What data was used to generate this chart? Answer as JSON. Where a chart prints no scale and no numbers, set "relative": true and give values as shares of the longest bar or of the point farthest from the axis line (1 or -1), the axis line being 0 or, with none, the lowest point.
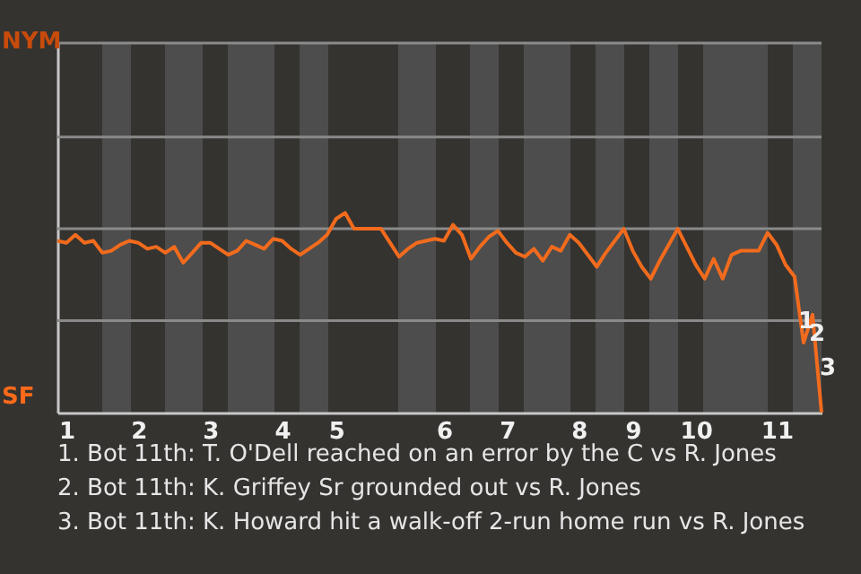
{
  "chart_data": {
    "type": "line",
    "relative": true,
    "categories": [
      null,
      "1",
      null,
      null,
      null,
      null,
      null,
      null,
      null,
      "2",
      null,
      null,
      null,
      null,
      null,
      null,
      null,
      "3",
      null,
      null,
      null,
      null,
      null,
      null,
      null,
      "4",
      null,
      null,
      null,
      null,
      null,
      "5",
      null,
      null,
      null,
      null,
      null,
      null,
      null,
      null,
      null,
      null,
      null,
      "6",
      null,
      null,
      null,
      null,
      null,
      null,
      "7",
      null,
      null,
      null,
      null,
      null,
      null,
      null,
      "8",
      null,
      null,
      null,
      null,
      null,
      "9",
      null,
      null,
      null,
      null,
      null,
      null,
      "10",
      null,
      null,
      null,
      null,
      null,
      null,
      null,
      null,
      "11",
      null,
      null,
      null,
      null,
      null
    ],
    "series": [
      {
        "color": "#f26b1d",
        "values": [
          0.86,
          0.85,
          0.89,
          0.85,
          0.86,
          0.8,
          0.81,
          0.84,
          0.86,
          0.85,
          0.82,
          0.83,
          0.8,
          0.83,
          0.75,
          0.8,
          0.85,
          0.85,
          0.82,
          0.79,
          0.81,
          0.86,
          0.84,
          0.82,
          0.87,
          0.86,
          0.82,
          0.79,
          0.82,
          0.85,
          0.89,
          0.97,
          1,
          0.92,
          0.92,
          0.92,
          0.92,
          0.85,
          0.78,
          0.82,
          0.85,
          0.86,
          0.87,
          0.86,
          0.94,
          0.89,
          0.77,
          0.83,
          0.88,
          0.91,
          0.85,
          0.8,
          0.78,
          0.82,
          0.76,
          0.83,
          0.81,
          0.89,
          0.85,
          0.79,
          0.73,
          0.8,
          0.86,
          0.92,
          0.81,
          0.73,
          0.67,
          0.76,
          0.84,
          0.92,
          0.83,
          0.74,
          0.67,
          0.77,
          0.67,
          0.79,
          0.81,
          0.81,
          0.81,
          0.9,
          0.84,
          0.74,
          0.68,
          0.35,
          0.49,
          0
        ]
      }
    ],
    "grid": false,
    "marker": "none",
    "ref_lines": [
      {
        "axis": "y",
        "value": 0.46,
        "color": "#8a8a8a"
      },
      {
        "axis": "y",
        "value": 0.92,
        "color": "#8a8a8a"
      },
      {
        "axis": "y",
        "value": 1.38,
        "color": "#8a8a8a"
      },
      {
        "axis": "y",
        "value": 1.85,
        "color": "#8a8a8a"
      }
    ],
    "annotations": [
      "NYM",
      "SF",
      "1",
      "2",
      "3",
      "1. Bot 11th: T. O'Dell reached on an error by the C vs R. Jones",
      "2. Bot 11th: K. Griffey Sr grounded out vs R. Jones",
      "3. Bot 11th: K. Howard hit a walk-off 2-run home run vs R. Jones"
    ]
  }
}
